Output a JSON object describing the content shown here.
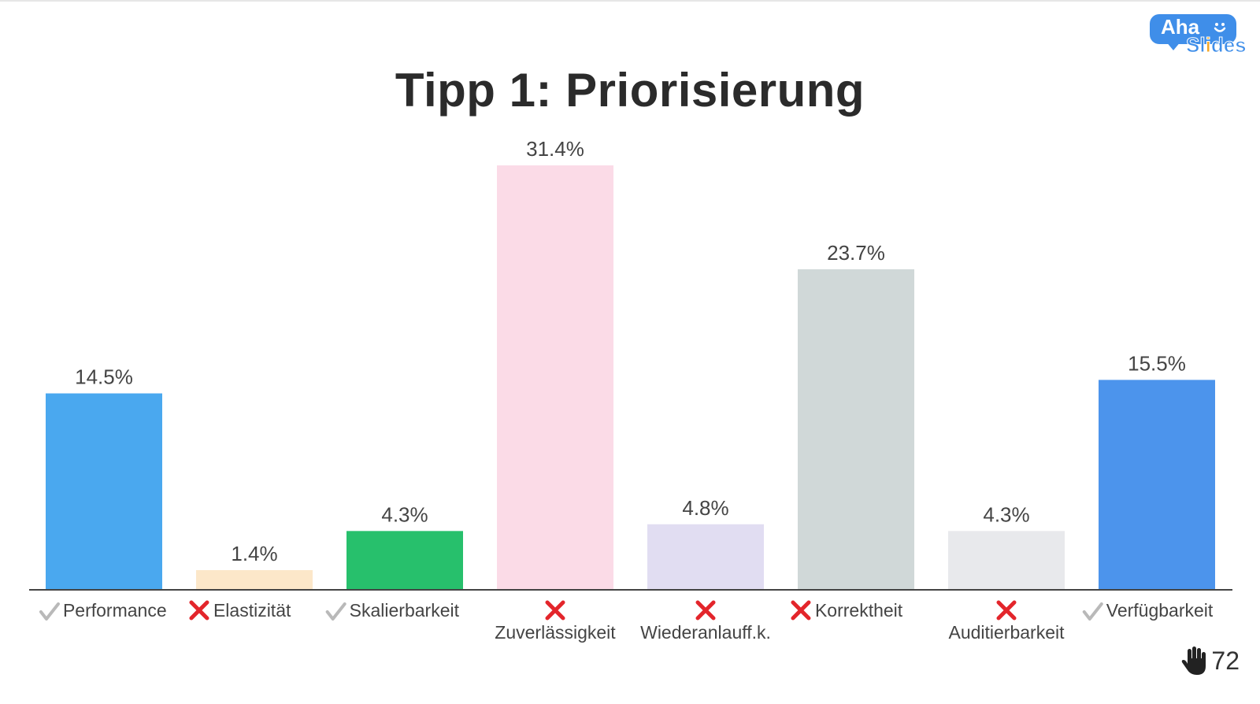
{
  "title": "Tipp 1: Priorisierung",
  "logo": {
    "line1": "Aha",
    "line2_prefix": "Sl",
    "line2_accent": "i",
    "line2_suffix": "des"
  },
  "response_count": "72",
  "colors": {
    "baseline": "#444444",
    "label_text": "#444444",
    "check": "#b9b9b9",
    "cross": "#e3252b",
    "logo_blue": "#3f8ee9",
    "logo_orange": "#f5a623"
  },
  "icons": {
    "correct": "check-icon",
    "wrong": "cross-icon",
    "responses": "hand-icon"
  },
  "chart_data": {
    "type": "bar",
    "title": "Tipp 1: Priorisierung",
    "categories": [
      "Performance",
      "Elastizität",
      "Skalierbarkeit",
      "Zuverlässigkeit",
      "Wiederanlauff.k.",
      "Korrektheit",
      "Auditierbarkeit",
      "Verfügbarkeit"
    ],
    "values": [
      14.5,
      1.4,
      4.3,
      31.4,
      4.8,
      23.7,
      4.3,
      15.5
    ],
    "value_labels": [
      "14.5%",
      "1.4%",
      "4.3%",
      "31.4%",
      "4.8%",
      "23.7%",
      "4.3%",
      "15.5%"
    ],
    "correct": [
      true,
      false,
      true,
      false,
      false,
      false,
      false,
      true
    ],
    "colors": [
      "#4aa8ef",
      "#fce7c9",
      "#27c06c",
      "#fbdbe7",
      "#e1ddf2",
      "#d0d8d8",
      "#e8e9ec",
      "#4c94ec"
    ],
    "ylim": [
      0,
      31.4
    ],
    "grid": false,
    "legend": "none"
  }
}
